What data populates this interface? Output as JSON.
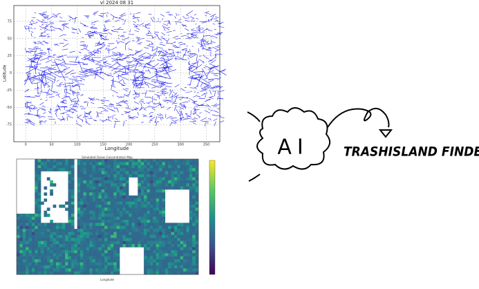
{
  "vector_plot": {
    "title": "vl 2024 08 31",
    "xlabel": "Longitude",
    "ylabel": "Latitude",
    "xlim": [
      -23,
      376
    ],
    "ylim": [
      -100,
      98
    ],
    "xticks": [
      0,
      50,
      100,
      150,
      200,
      250,
      300,
      350
    ],
    "yticks": [
      75,
      50,
      25,
      0,
      -25,
      -50,
      -75
    ]
  },
  "heatmap": {
    "title": "Simulated Ocean Concentration Map",
    "xlabel": "Longitude"
  },
  "logo": {
    "badge": "AI",
    "title": "TRASHISLAND FINDER"
  }
}
